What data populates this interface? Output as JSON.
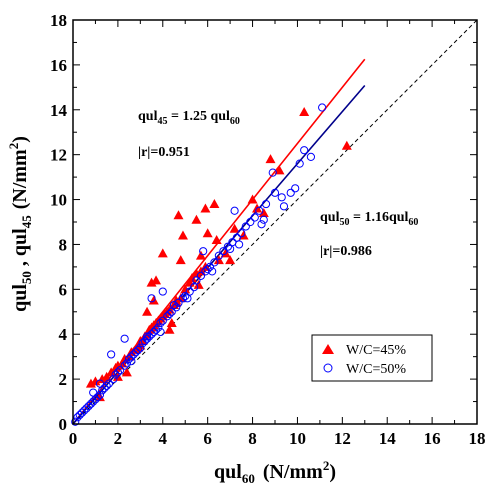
{
  "chart_data": {
    "type": "scatter",
    "xlabel": "qul60 (N/mm2)",
    "ylabel": "qul50 , qul45 (N/mm2)",
    "xlim": [
      0,
      18
    ],
    "ylim": [
      0,
      18
    ],
    "xticks": [
      0,
      2,
      4,
      6,
      8,
      10,
      12,
      14,
      16,
      18
    ],
    "yticks": [
      0,
      2,
      4,
      6,
      8,
      10,
      12,
      14,
      16,
      18
    ],
    "tick_labels": [
      "0",
      "2",
      "4",
      "6",
      "8",
      "10",
      "12",
      "14",
      "16",
      "18"
    ],
    "grid": false,
    "legend_placement": "bottom-right",
    "annotations": {
      "wc45_equation": "qul45 = 1.25 qul60",
      "wc45_r": "|r|=0.951",
      "wc50_equation": "qul50 = 1.16qul60",
      "wc50_r": "|r|=0.986"
    },
    "reference_line": {
      "slope": 1,
      "style": "dashed",
      "color": "#000000"
    },
    "fits": [
      {
        "series": "W/C=45%",
        "slope": 1.25,
        "x_range": [
          0,
          13
        ],
        "color": "#ff0000"
      },
      {
        "series": "W/C=50%",
        "slope": 1.16,
        "x_range": [
          0,
          13
        ],
        "color": "#00008b"
      }
    ],
    "series": [
      {
        "name": "W/C=45%",
        "marker": "filled-triangle",
        "color": "#ff0000",
        "points": [
          [
            0.8,
            1.8
          ],
          [
            1.0,
            1.9
          ],
          [
            1.3,
            2.0
          ],
          [
            1.5,
            2.1
          ],
          [
            1.7,
            2.3
          ],
          [
            1.9,
            2.5
          ],
          [
            2.0,
            2.6
          ],
          [
            2.2,
            2.7
          ],
          [
            2.3,
            2.9
          ],
          [
            2.5,
            3.0
          ],
          [
            2.6,
            3.2
          ],
          [
            2.8,
            3.3
          ],
          [
            2.9,
            3.4
          ],
          [
            3.0,
            3.5
          ],
          [
            3.1,
            3.7
          ],
          [
            3.2,
            3.9
          ],
          [
            3.3,
            4.0
          ],
          [
            3.4,
            4.2
          ],
          [
            3.5,
            4.3
          ],
          [
            3.6,
            4.4
          ],
          [
            3.7,
            4.5
          ],
          [
            3.8,
            4.6
          ],
          [
            3.9,
            4.7
          ],
          [
            4.0,
            4.8
          ],
          [
            4.1,
            4.9
          ],
          [
            4.2,
            5.0
          ],
          [
            4.3,
            5.1
          ],
          [
            4.5,
            5.3
          ],
          [
            4.6,
            5.4
          ],
          [
            4.8,
            5.6
          ],
          [
            5.0,
            6.0
          ],
          [
            5.2,
            6.3
          ],
          [
            5.3,
            6.5
          ],
          [
            5.5,
            6.7
          ],
          [
            5.7,
            6.8
          ],
          [
            5.9,
            7.0
          ],
          [
            3.5,
            6.3
          ],
          [
            3.7,
            6.4
          ],
          [
            3.3,
            5.0
          ],
          [
            3.6,
            5.5
          ],
          [
            4.0,
            7.6
          ],
          [
            4.8,
            7.3
          ],
          [
            4.9,
            8.4
          ],
          [
            4.7,
            9.3
          ],
          [
            5.5,
            9.1
          ],
          [
            5.9,
            9.6
          ],
          [
            6.3,
            9.8
          ],
          [
            6.0,
            8.5
          ],
          [
            6.4,
            8.2
          ],
          [
            5.7,
            7.5
          ],
          [
            6.5,
            7.3
          ],
          [
            7.2,
            8.7
          ],
          [
            7.6,
            8.4
          ],
          [
            8.0,
            10.0
          ],
          [
            8.2,
            9.6
          ],
          [
            8.5,
            9.4
          ],
          [
            8.8,
            11.8
          ],
          [
            9.2,
            11.3
          ],
          [
            10.3,
            13.9
          ],
          [
            12.2,
            12.4
          ],
          [
            6.8,
            7.6
          ],
          [
            7.0,
            7.3
          ],
          [
            4.4,
            4.5
          ],
          [
            2.4,
            2.3
          ],
          [
            1.2,
            1.2
          ],
          [
            2.0,
            2.1
          ],
          [
            3.0,
            3.7
          ],
          [
            4.3,
            4.2
          ],
          [
            4.6,
            5.5
          ],
          [
            5.6,
            6.2
          ]
        ]
      },
      {
        "name": "W/C=50%",
        "marker": "open-circle",
        "color": "#0000ff",
        "points": [
          [
            0.1,
            0.1
          ],
          [
            0.2,
            0.3
          ],
          [
            0.3,
            0.4
          ],
          [
            0.4,
            0.5
          ],
          [
            0.5,
            0.6
          ],
          [
            0.6,
            0.7
          ],
          [
            0.7,
            0.8
          ],
          [
            0.8,
            0.9
          ],
          [
            0.9,
            1.0
          ],
          [
            1.0,
            1.1
          ],
          [
            1.1,
            1.2
          ],
          [
            1.2,
            1.3
          ],
          [
            1.3,
            1.5
          ],
          [
            1.4,
            1.6
          ],
          [
            1.5,
            1.7
          ],
          [
            1.6,
            1.8
          ],
          [
            1.8,
            2.0
          ],
          [
            1.9,
            2.2
          ],
          [
            2.0,
            2.3
          ],
          [
            2.1,
            2.4
          ],
          [
            2.3,
            2.6
          ],
          [
            2.4,
            2.7
          ],
          [
            2.5,
            2.9
          ],
          [
            2.6,
            3.0
          ],
          [
            2.7,
            3.1
          ],
          [
            2.8,
            3.2
          ],
          [
            2.9,
            3.3
          ],
          [
            3.0,
            3.4
          ],
          [
            3.1,
            3.6
          ],
          [
            3.2,
            3.7
          ],
          [
            3.3,
            3.8
          ],
          [
            3.4,
            3.9
          ],
          [
            3.5,
            4.0
          ],
          [
            3.6,
            4.1
          ],
          [
            3.7,
            4.2
          ],
          [
            3.8,
            4.3
          ],
          [
            3.9,
            4.5
          ],
          [
            4.0,
            4.6
          ],
          [
            4.2,
            4.8
          ],
          [
            4.3,
            4.9
          ],
          [
            4.4,
            5.0
          ],
          [
            4.6,
            5.2
          ],
          [
            4.7,
            5.4
          ],
          [
            4.9,
            5.6
          ],
          [
            5.0,
            5.7
          ],
          [
            5.2,
            5.9
          ],
          [
            5.4,
            6.1
          ],
          [
            5.5,
            6.4
          ],
          [
            5.7,
            6.6
          ],
          [
            5.9,
            6.8
          ],
          [
            6.1,
            7.0
          ],
          [
            6.3,
            7.2
          ],
          [
            6.5,
            7.5
          ],
          [
            6.7,
            7.7
          ],
          [
            6.9,
            7.9
          ],
          [
            7.1,
            8.1
          ],
          [
            7.3,
            8.3
          ],
          [
            7.5,
            8.5
          ],
          [
            7.7,
            8.8
          ],
          [
            7.9,
            9.0
          ],
          [
            8.1,
            9.2
          ],
          [
            8.3,
            9.5
          ],
          [
            8.6,
            9.8
          ],
          [
            9.0,
            10.3
          ],
          [
            1.7,
            3.1
          ],
          [
            2.3,
            3.8
          ],
          [
            3.5,
            5.6
          ],
          [
            4.0,
            5.9
          ],
          [
            5.8,
            7.7
          ],
          [
            7.2,
            9.5
          ],
          [
            7.4,
            8.0
          ],
          [
            8.4,
            8.9
          ],
          [
            8.9,
            11.2
          ],
          [
            9.3,
            10.1
          ],
          [
            9.7,
            10.3
          ],
          [
            9.9,
            10.5
          ],
          [
            10.1,
            11.6
          ],
          [
            10.3,
            12.2
          ],
          [
            10.6,
            11.9
          ],
          [
            11.1,
            14.1
          ],
          [
            9.4,
            9.7
          ],
          [
            8.5,
            9.1
          ],
          [
            6.2,
            6.8
          ],
          [
            5.1,
            5.6
          ],
          [
            3.3,
            3.9
          ],
          [
            2.6,
            2.8
          ],
          [
            1.2,
            1.8
          ],
          [
            0.9,
            1.4
          ],
          [
            4.5,
            5.3
          ],
          [
            6.0,
            6.9
          ],
          [
            7.0,
            7.8
          ],
          [
            3.9,
            4.1
          ]
        ]
      }
    ],
    "legend": [
      {
        "label": "W/C=45%",
        "marker": "filled-triangle",
        "color": "#ff0000"
      },
      {
        "label": "W/C=50%",
        "marker": "open-circle",
        "color": "#0000ff"
      }
    ]
  }
}
